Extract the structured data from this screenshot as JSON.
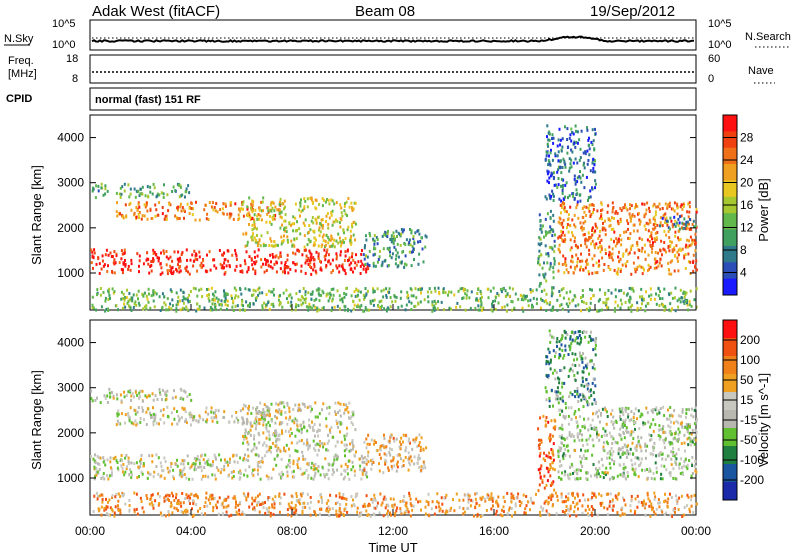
{
  "header": {
    "station": "Adak West (fitACF)",
    "beam": "Beam 08",
    "date": "19/Sep/2012"
  },
  "top_panels": {
    "nsky": {
      "label": "N.Sky",
      "ticks": [
        "10^5",
        "10^0"
      ],
      "right_label": "N.Search",
      "right_ticks": [
        "10^5",
        "10^0"
      ]
    },
    "freq": {
      "label_line1": "Freq.",
      "label_line2": "[MHz]",
      "ticks": [
        "18",
        "8"
      ],
      "right_label": "Nave",
      "right_ticks": [
        "60",
        "0"
      ]
    },
    "cpid": {
      "label": "CPID",
      "text": "normal (fast) 151 RF"
    }
  },
  "chart_data": [
    {
      "type": "heatmap",
      "title": "Power",
      "ylabel": "Slant Range [km]",
      "xlabel": "",
      "x_ticks": [
        "00:00",
        "04:00",
        "08:00",
        "12:00",
        "16:00",
        "20:00",
        "00:00"
      ],
      "x_hours": [
        0,
        4,
        8,
        12,
        16,
        20,
        24
      ],
      "y_ticks": [
        1000,
        2000,
        3000,
        4000
      ],
      "ylim": [
        180,
        4500
      ],
      "xlim": [
        0,
        24
      ],
      "colorbar": {
        "label": "Power [dB]",
        "ticks": [
          4,
          8,
          12,
          16,
          20,
          24,
          28
        ],
        "range": [
          0,
          32
        ],
        "colors": [
          "#1b1bff",
          "#2a4db8",
          "#2e7a8a",
          "#40a060",
          "#62b84a",
          "#a8c830",
          "#e8c820",
          "#f0a020",
          "#f07018",
          "#f04010",
          "#ff1010"
        ]
      },
      "regions": [
        {
          "t0": 0.0,
          "t1": 11.0,
          "r0": 1000,
          "r1": 1550,
          "level": 0.95
        },
        {
          "t0": 1.0,
          "t1": 7.5,
          "r0": 2200,
          "r1": 2600,
          "level": 0.75
        },
        {
          "t0": 0.0,
          "t1": 4.0,
          "r0": 2700,
          "r1": 3000,
          "level": 0.35
        },
        {
          "t0": 6.0,
          "t1": 10.5,
          "r0": 1600,
          "r1": 2700,
          "level": 0.55
        },
        {
          "t0": 10.8,
          "t1": 13.3,
          "r0": 1150,
          "r1": 2000,
          "level": 0.3
        },
        {
          "t0": 17.7,
          "t1": 18.4,
          "r0": 700,
          "r1": 2400,
          "level": 0.3
        },
        {
          "t0": 18.5,
          "t1": 24.0,
          "r0": 1000,
          "r1": 2600,
          "level": 0.75
        },
        {
          "t0": 18.0,
          "t1": 20.0,
          "r0": 2600,
          "r1": 4300,
          "level": 0.2
        },
        {
          "t0": 22.5,
          "t1": 24.0,
          "r0": 2000,
          "r1": 2300,
          "level": 0.2
        },
        {
          "t0": 0.0,
          "t1": 24.0,
          "r0": 180,
          "r1": 700,
          "level": 0.4
        }
      ]
    },
    {
      "type": "heatmap",
      "title": "Velocity",
      "ylabel": "Slant Range [km]",
      "xlabel": "Time UT",
      "x_ticks": [
        "00:00",
        "04:00",
        "08:00",
        "12:00",
        "16:00",
        "20:00",
        "00:00"
      ],
      "x_hours": [
        0,
        4,
        8,
        12,
        16,
        20,
        24
      ],
      "y_ticks": [
        1000,
        2000,
        3000,
        4000
      ],
      "ylim": [
        180,
        4500
      ],
      "xlim": [
        0,
        24
      ],
      "colorbar": {
        "label": "Velocity [m s^-1]",
        "ticks": [
          "200",
          "100",
          "50",
          "15",
          "-15",
          "-50",
          "-100",
          "-200"
        ],
        "colors": [
          "#1a2aa8",
          "#1a56a0",
          "#1f7f40",
          "#60c030",
          "#b8b8b0",
          "#c8c8c0",
          "#f0a020",
          "#f08018",
          "#f05010",
          "#ff1010"
        ]
      },
      "regions": [
        {
          "t0": 0.0,
          "t1": 11.0,
          "r0": 1000,
          "r1": 1550,
          "level": 0.5
        },
        {
          "t0": 1.0,
          "t1": 7.5,
          "r0": 2200,
          "r1": 2600,
          "level": 0.5
        },
        {
          "t0": 0.0,
          "t1": 4.0,
          "r0": 2700,
          "r1": 3000,
          "level": 0.5
        },
        {
          "t0": 6.0,
          "t1": 10.5,
          "r0": 1600,
          "r1": 2700,
          "level": 0.5
        },
        {
          "t0": 10.8,
          "t1": 13.3,
          "r0": 1150,
          "r1": 2000,
          "level": 0.65
        },
        {
          "t0": 17.7,
          "t1": 18.4,
          "r0": 700,
          "r1": 2400,
          "level": 0.8
        },
        {
          "t0": 18.5,
          "t1": 24.0,
          "r0": 1000,
          "r1": 2600,
          "level": 0.45
        },
        {
          "t0": 18.0,
          "t1": 20.0,
          "r0": 2600,
          "r1": 4300,
          "level": 0.3
        },
        {
          "t0": 22.5,
          "t1": 24.0,
          "r0": 2000,
          "r1": 2300,
          "level": 0.5
        },
        {
          "t0": 0.0,
          "t1": 24.0,
          "r0": 180,
          "r1": 700,
          "level": 0.7
        }
      ]
    }
  ]
}
